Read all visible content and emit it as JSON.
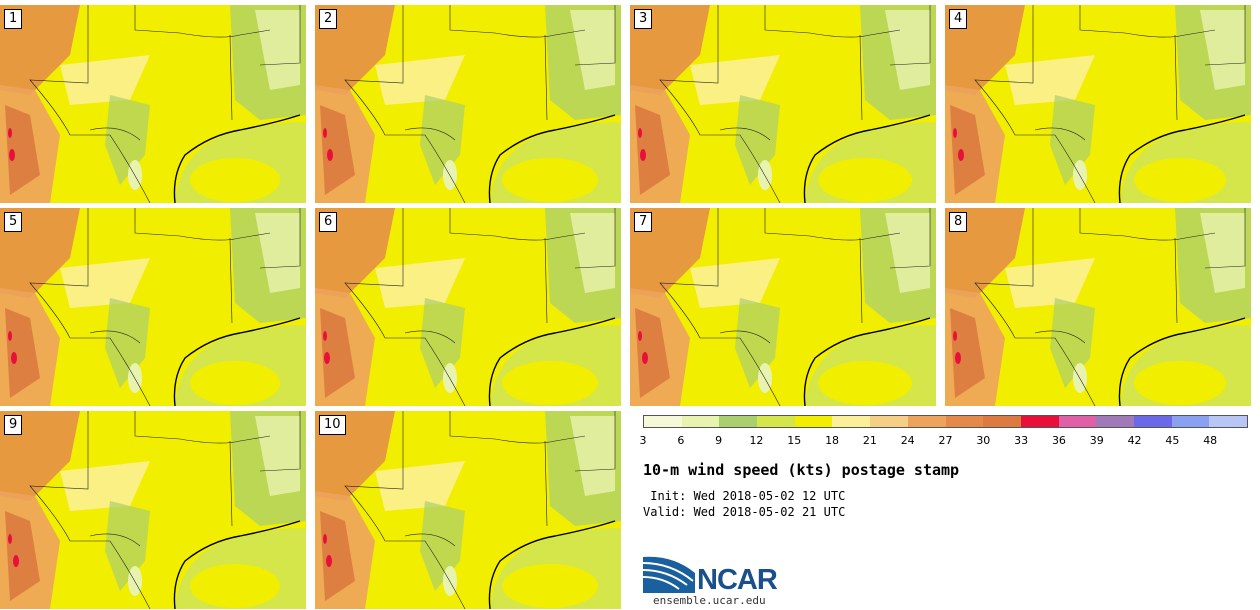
{
  "panels": [
    {
      "label": "1"
    },
    {
      "label": "2"
    },
    {
      "label": "3"
    },
    {
      "label": "4"
    },
    {
      "label": "5"
    },
    {
      "label": "6"
    },
    {
      "label": "7"
    },
    {
      "label": "8"
    },
    {
      "label": "9"
    },
    {
      "label": "10"
    }
  ],
  "colorbar": {
    "colors": [
      "#f6f9d8",
      "#e8f3b0",
      "#a9cf6f",
      "#d4e64a",
      "#f2ee00",
      "#fbf09a",
      "#f6cf86",
      "#eda35c",
      "#e4894a",
      "#dc7a40",
      "#e8103a",
      "#e060a8",
      "#a07ab8",
      "#6a6ae8",
      "#8aa0f0",
      "#b8c6f6"
    ],
    "ticks": [
      "3",
      "6",
      "9",
      "12",
      "15",
      "18",
      "21",
      "24",
      "27",
      "30",
      "33",
      "36",
      "39",
      "42",
      "45",
      "48"
    ]
  },
  "title": "10-m wind speed (kts) postage stamp",
  "init": " Init: Wed 2018-05-02 12 UTC",
  "valid": "Valid: Wed 2018-05-02 21 UTC",
  "logo": {
    "text": "NCAR",
    "site": "ensemble.ucar.edu"
  }
}
